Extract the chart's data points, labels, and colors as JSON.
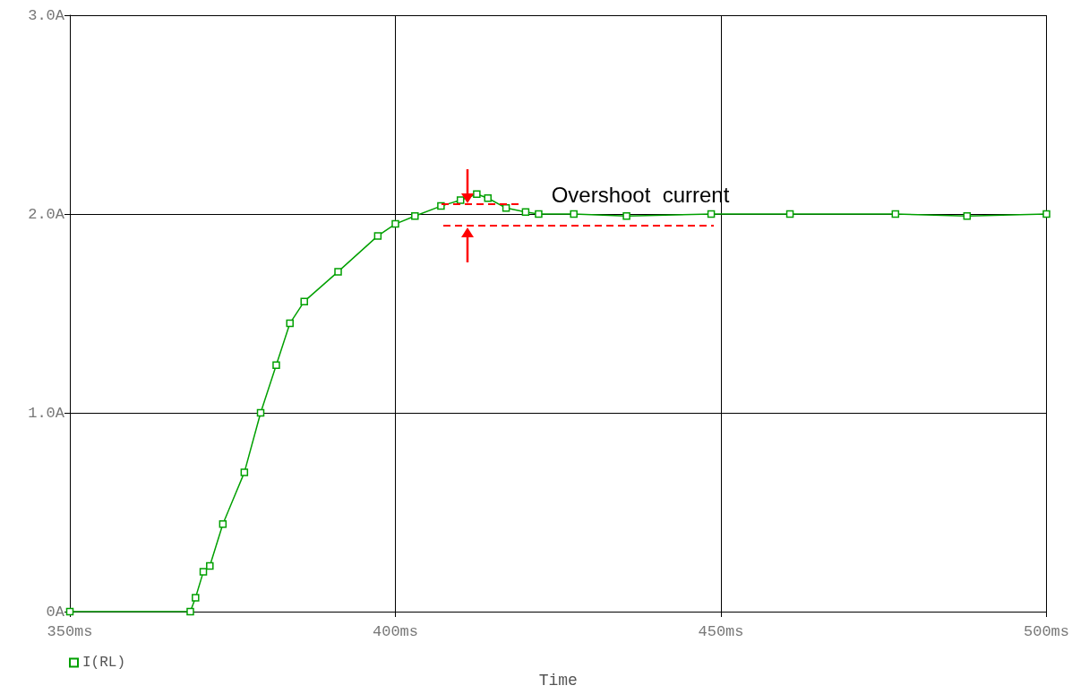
{
  "chart_data": {
    "type": "line",
    "xlabel": "Time",
    "x": [
      350,
      368.5,
      369.3,
      370.5,
      371.5,
      373.5,
      376.8,
      379.3,
      381.7,
      383.8,
      386,
      391.2,
      397.3,
      400,
      403,
      407,
      410,
      412.5,
      414.2,
      417,
      420,
      422,
      427.4,
      435.5,
      448.5,
      460.6,
      476.8,
      487.8,
      500
    ],
    "series": [
      {
        "name": "I(RL)",
        "color": "#00a000",
        "values": [
          0,
          0,
          0.07,
          0.2,
          0.23,
          0.44,
          0.7,
          1.0,
          1.24,
          1.45,
          1.56,
          1.71,
          1.89,
          1.95,
          1.99,
          2.04,
          2.07,
          2.1,
          2.08,
          2.03,
          2.01,
          2.0,
          2.0,
          1.99,
          2.0,
          2.0,
          2.0,
          1.99,
          2.0
        ]
      }
    ],
    "xlim": [
      350,
      500
    ],
    "xticks": [
      {
        "value": 350,
        "label": "350ms"
      },
      {
        "value": 400,
        "label": "400ms"
      },
      {
        "value": 450,
        "label": "450ms"
      },
      {
        "value": 500,
        "label": "500ms"
      }
    ],
    "ylim": [
      0,
      3
    ],
    "yticks": [
      {
        "value": 0,
        "label": "0A"
      },
      {
        "value": 1,
        "label": "1.0A"
      },
      {
        "value": 2,
        "label": "2.0A"
      },
      {
        "value": 3,
        "label": "3.0A"
      }
    ],
    "grid": true,
    "legend": "bottom left",
    "marker": "square",
    "line_style": "solid",
    "annotations": [
      "Overshoot  current"
    ]
  }
}
